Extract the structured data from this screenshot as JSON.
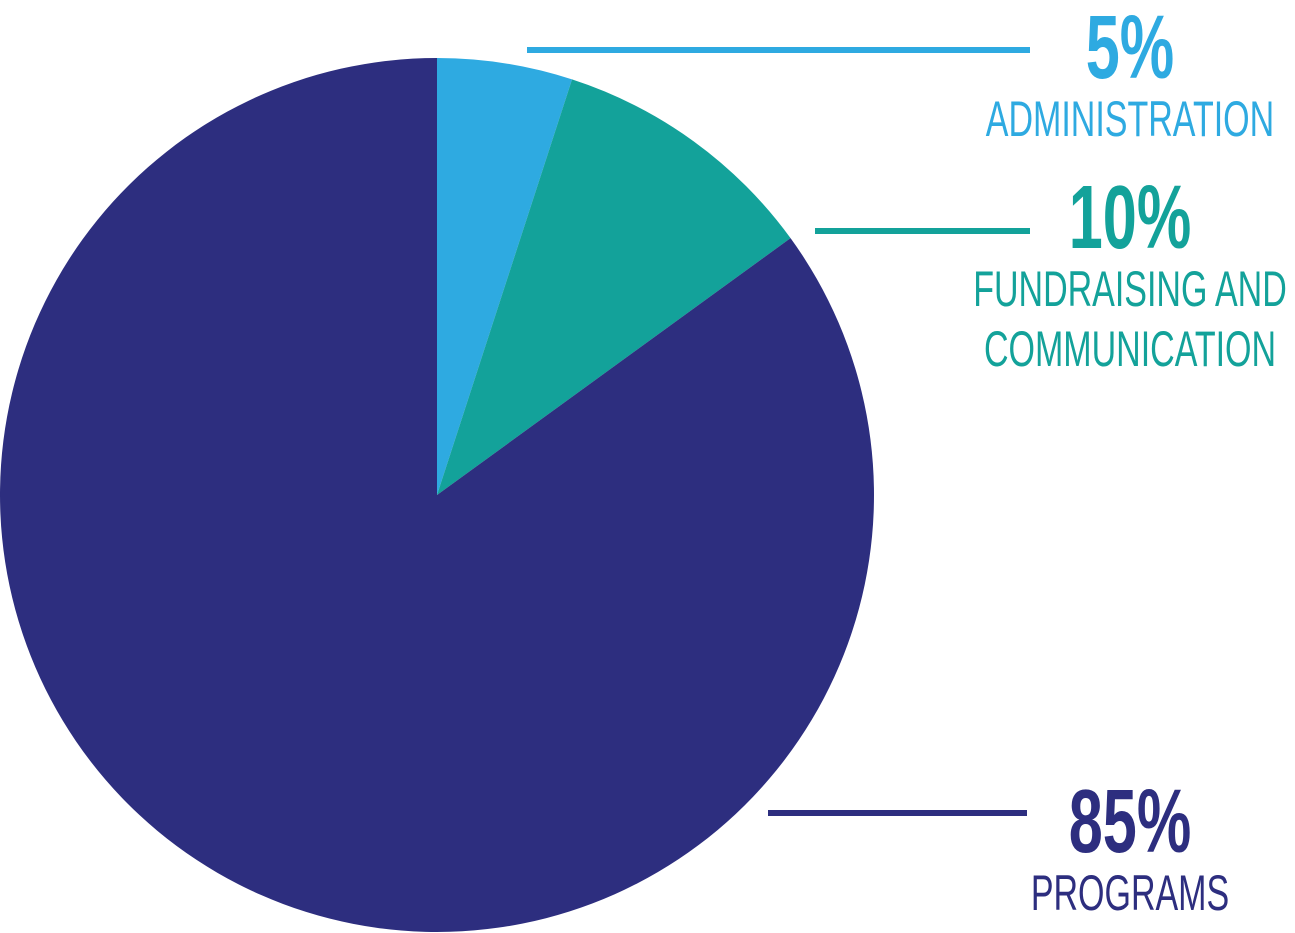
{
  "chart_data": {
    "type": "pie",
    "categories": [
      "ADMINISTRATION",
      "FUNDRAISING AND COMMUNICATION",
      "PROGRAMS"
    ],
    "values": [
      5,
      10,
      85
    ],
    "value_labels": [
      "5%",
      "10%",
      "85%"
    ],
    "colors": [
      "#2eaae1",
      "#13a29a",
      "#2d2e7f"
    ]
  }
}
